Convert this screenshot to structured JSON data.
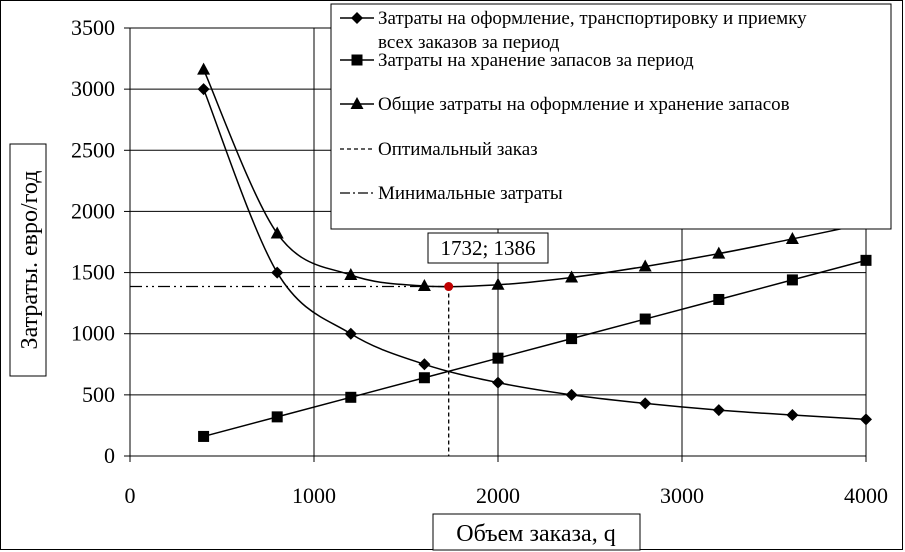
{
  "chart_data": {
    "type": "line",
    "xlabel": "Объем заказа, q",
    "ylabel": "Затраты. евро/год",
    "xlim": [
      0,
      4000
    ],
    "ylim": [
      0,
      3500
    ],
    "x_ticks": [
      "0",
      "1000",
      "2000",
      "3000",
      "4000"
    ],
    "y_ticks": [
      "0",
      "500",
      "1000",
      "1500",
      "2000",
      "2500",
      "3000",
      "3500"
    ],
    "grid": true,
    "legend_position": "top-right",
    "series": [
      {
        "name_lines": [
          "Затраты на оформление, транспортировку и приемку",
          "всех заказов за период"
        ],
        "marker": "diamond",
        "x": [
          400,
          800,
          1200,
          1600,
          2000,
          2400,
          2800,
          3200,
          3600,
          4000
        ],
        "y": [
          3000,
          1500,
          1000,
          750,
          600,
          500,
          430,
          375,
          335,
          300
        ]
      },
      {
        "name": "Затраты на хранение запасов за период",
        "marker": "square",
        "x": [
          400,
          800,
          1200,
          1600,
          2000,
          2400,
          2800,
          3200,
          3600,
          4000
        ],
        "y": [
          160,
          320,
          480,
          640,
          800,
          960,
          1120,
          1280,
          1440,
          1600
        ]
      },
      {
        "name": "Общие затраты на оформление и хранение запасов",
        "marker": "triangle",
        "x": [
          400,
          800,
          1200,
          1600,
          2000,
          2400,
          2800,
          3200,
          3600,
          4000
        ],
        "y": [
          3160,
          1820,
          1480,
          1390,
          1400,
          1460,
          1550,
          1655,
          1775,
          1900
        ]
      }
    ],
    "reference_lines": [
      {
        "name": "Оптимальный заказ",
        "style": "dashed",
        "orientation": "vertical",
        "x": 1732
      },
      {
        "name": "Минимальные затраты",
        "style": "dash-dot-dot",
        "orientation": "horizontal",
        "y": 1386
      }
    ],
    "optimum_point": {
      "x": 1732,
      "y": 1386,
      "color": "#c00000"
    },
    "annotation": "1732; 1386"
  }
}
